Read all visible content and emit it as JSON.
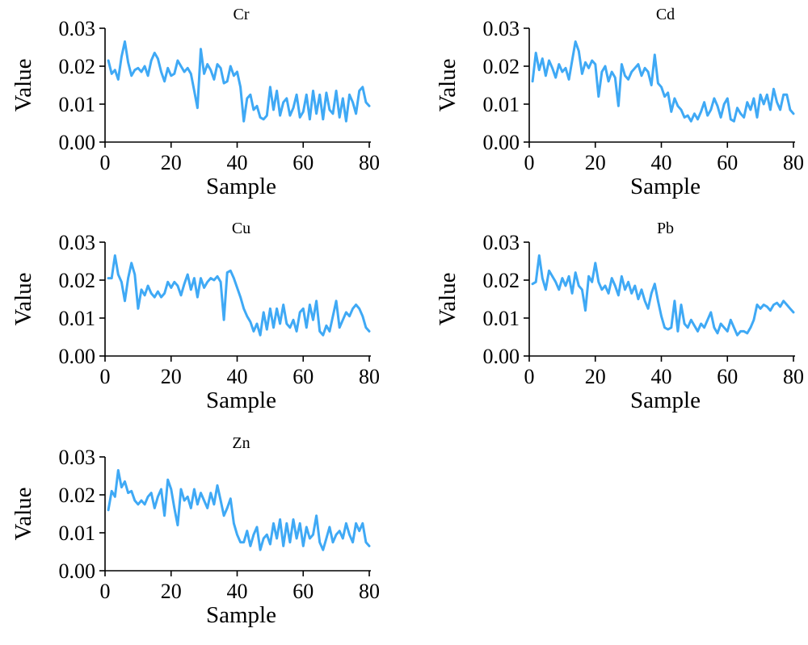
{
  "chart_data": [
    {
      "type": "line",
      "title": "Cr",
      "xlabel": "Sample",
      "ylabel": "Value",
      "xlim": [
        0,
        80
      ],
      "ylim": [
        0,
        0.03
      ],
      "xticks": [
        "0",
        "20",
        "40",
        "60",
        "80"
      ],
      "yticks": [
        "0.00",
        "0.01",
        "0.02",
        "0.03"
      ],
      "color": "#3fa9f5",
      "series": [
        {
          "x": [
            1,
            2,
            3,
            4,
            5,
            6,
            7,
            8,
            9,
            10,
            11,
            12,
            13,
            14,
            15,
            16,
            17,
            18,
            19,
            20,
            21,
            22,
            23,
            24,
            25,
            26,
            27,
            28,
            29,
            30,
            31,
            32,
            33,
            34,
            35,
            36,
            37,
            38,
            39,
            40,
            41,
            42,
            43,
            44,
            45,
            46,
            47,
            48,
            49,
            50,
            51,
            52,
            53,
            54,
            55,
            56,
            57,
            58,
            59,
            60,
            61,
            62,
            63,
            64,
            65,
            66,
            67,
            68,
            69,
            70,
            71,
            72,
            73,
            74,
            75,
            76,
            77,
            78,
            79,
            80
          ],
          "values": [
            0.0215,
            0.018,
            0.019,
            0.0165,
            0.0225,
            0.0265,
            0.021,
            0.0175,
            0.019,
            0.0195,
            0.0185,
            0.02,
            0.0175,
            0.0215,
            0.0235,
            0.022,
            0.0185,
            0.016,
            0.0195,
            0.0175,
            0.018,
            0.0215,
            0.02,
            0.0185,
            0.0195,
            0.018,
            0.0135,
            0.009,
            0.0245,
            0.018,
            0.0205,
            0.019,
            0.0165,
            0.0205,
            0.0195,
            0.0155,
            0.016,
            0.02,
            0.0175,
            0.0185,
            0.0145,
            0.0055,
            0.0115,
            0.0125,
            0.0085,
            0.0095,
            0.0065,
            0.006,
            0.007,
            0.0145,
            0.0085,
            0.0135,
            0.007,
            0.0105,
            0.0115,
            0.007,
            0.009,
            0.0125,
            0.0065,
            0.008,
            0.0125,
            0.006,
            0.0135,
            0.0075,
            0.0125,
            0.006,
            0.013,
            0.0085,
            0.0075,
            0.0135,
            0.0065,
            0.0115,
            0.0055,
            0.0125,
            0.0105,
            0.0075,
            0.0135,
            0.0145,
            0.0105,
            0.0095
          ]
        }
      ]
    },
    {
      "type": "line",
      "title": "Cd",
      "xlabel": "Sample",
      "ylabel": "Value",
      "xlim": [
        0,
        80
      ],
      "ylim": [
        0,
        0.03
      ],
      "xticks": [
        "0",
        "20",
        "40",
        "60",
        "80"
      ],
      "yticks": [
        "0.00",
        "0.01",
        "0.02",
        "0.03"
      ],
      "color": "#3fa9f5",
      "series": [
        {
          "x": [
            1,
            2,
            3,
            4,
            5,
            6,
            7,
            8,
            9,
            10,
            11,
            12,
            13,
            14,
            15,
            16,
            17,
            18,
            19,
            20,
            21,
            22,
            23,
            24,
            25,
            26,
            27,
            28,
            29,
            30,
            31,
            32,
            33,
            34,
            35,
            36,
            37,
            38,
            39,
            40,
            41,
            42,
            43,
            44,
            45,
            46,
            47,
            48,
            49,
            50,
            51,
            52,
            53,
            54,
            55,
            56,
            57,
            58,
            59,
            60,
            61,
            62,
            63,
            64,
            65,
            66,
            67,
            68,
            69,
            70,
            71,
            72,
            73,
            74,
            75,
            76,
            77,
            78,
            79,
            80
          ],
          "values": [
            0.016,
            0.0235,
            0.019,
            0.022,
            0.0175,
            0.0215,
            0.0195,
            0.017,
            0.0205,
            0.0185,
            0.0195,
            0.0165,
            0.0215,
            0.0265,
            0.024,
            0.018,
            0.021,
            0.0195,
            0.0215,
            0.0205,
            0.012,
            0.0185,
            0.02,
            0.016,
            0.0185,
            0.017,
            0.0095,
            0.0205,
            0.0175,
            0.0165,
            0.0185,
            0.0195,
            0.0205,
            0.0175,
            0.0195,
            0.0185,
            0.015,
            0.023,
            0.0155,
            0.0145,
            0.012,
            0.013,
            0.008,
            0.0115,
            0.0095,
            0.0085,
            0.0065,
            0.007,
            0.0055,
            0.0075,
            0.006,
            0.008,
            0.0105,
            0.007,
            0.0085,
            0.0115,
            0.0095,
            0.0065,
            0.01,
            0.0115,
            0.006,
            0.0055,
            0.009,
            0.0075,
            0.0065,
            0.0105,
            0.0085,
            0.0115,
            0.0065,
            0.0125,
            0.01,
            0.0125,
            0.0085,
            0.014,
            0.0105,
            0.0085,
            0.0125,
            0.0125,
            0.0085,
            0.0075
          ]
        }
      ]
    },
    {
      "type": "line",
      "title": "Cu",
      "xlabel": "Sample",
      "ylabel": "Value",
      "xlim": [
        0,
        80
      ],
      "ylim": [
        0,
        0.03
      ],
      "xticks": [
        "0",
        "20",
        "40",
        "60",
        "80"
      ],
      "yticks": [
        "0.00",
        "0.01",
        "0.02",
        "0.03"
      ],
      "color": "#3fa9f5",
      "series": [
        {
          "x": [
            1,
            2,
            3,
            4,
            5,
            6,
            7,
            8,
            9,
            10,
            11,
            12,
            13,
            14,
            15,
            16,
            17,
            18,
            19,
            20,
            21,
            22,
            23,
            24,
            25,
            26,
            27,
            28,
            29,
            30,
            31,
            32,
            33,
            34,
            35,
            36,
            37,
            38,
            39,
            40,
            41,
            42,
            43,
            44,
            45,
            46,
            47,
            48,
            49,
            50,
            51,
            52,
            53,
            54,
            55,
            56,
            57,
            58,
            59,
            60,
            61,
            62,
            63,
            64,
            65,
            66,
            67,
            68,
            69,
            70,
            71,
            72,
            73,
            74,
            75,
            76,
            77,
            78,
            79,
            80
          ],
          "values": [
            0.0205,
            0.0205,
            0.0265,
            0.0215,
            0.0195,
            0.0145,
            0.0205,
            0.0245,
            0.0215,
            0.0125,
            0.0175,
            0.016,
            0.0185,
            0.0165,
            0.0155,
            0.017,
            0.0155,
            0.0165,
            0.0195,
            0.018,
            0.0195,
            0.0185,
            0.016,
            0.019,
            0.0215,
            0.0175,
            0.0205,
            0.0155,
            0.0205,
            0.018,
            0.0195,
            0.0205,
            0.02,
            0.021,
            0.0195,
            0.0095,
            0.022,
            0.0225,
            0.0205,
            0.018,
            0.0155,
            0.0125,
            0.0105,
            0.009,
            0.0065,
            0.0085,
            0.0055,
            0.0115,
            0.007,
            0.0125,
            0.0075,
            0.0125,
            0.0085,
            0.0135,
            0.0085,
            0.0075,
            0.0095,
            0.0065,
            0.0115,
            0.0125,
            0.0075,
            0.0135,
            0.0095,
            0.0145,
            0.0065,
            0.0055,
            0.008,
            0.0065,
            0.0105,
            0.0145,
            0.0075,
            0.0095,
            0.0115,
            0.0105,
            0.0125,
            0.0135,
            0.0125,
            0.0105,
            0.0075,
            0.0065
          ]
        }
      ]
    },
    {
      "type": "line",
      "title": "Pb",
      "xlabel": "Sample",
      "ylabel": "Value",
      "xlim": [
        0,
        80
      ],
      "ylim": [
        0,
        0.03
      ],
      "xticks": [
        "0",
        "20",
        "40",
        "60",
        "80"
      ],
      "yticks": [
        "0.00",
        "0.01",
        "0.02",
        "0.03"
      ],
      "color": "#3fa9f5",
      "series": [
        {
          "x": [
            1,
            2,
            3,
            4,
            5,
            6,
            7,
            8,
            9,
            10,
            11,
            12,
            13,
            14,
            15,
            16,
            17,
            18,
            19,
            20,
            21,
            22,
            23,
            24,
            25,
            26,
            27,
            28,
            29,
            30,
            31,
            32,
            33,
            34,
            35,
            36,
            37,
            38,
            39,
            40,
            41,
            42,
            43,
            44,
            45,
            46,
            47,
            48,
            49,
            50,
            51,
            52,
            53,
            54,
            55,
            56,
            57,
            58,
            59,
            60,
            61,
            62,
            63,
            64,
            65,
            66,
            67,
            68,
            69,
            70,
            71,
            72,
            73,
            74,
            75,
            76,
            77,
            78,
            79,
            80
          ],
          "values": [
            0.019,
            0.0195,
            0.0265,
            0.0205,
            0.0175,
            0.0225,
            0.021,
            0.0195,
            0.0175,
            0.0205,
            0.0185,
            0.021,
            0.0165,
            0.022,
            0.0185,
            0.0175,
            0.012,
            0.021,
            0.0195,
            0.0245,
            0.0195,
            0.0175,
            0.0185,
            0.0165,
            0.0205,
            0.0185,
            0.016,
            0.021,
            0.0175,
            0.0195,
            0.0165,
            0.0185,
            0.015,
            0.0175,
            0.0145,
            0.0125,
            0.0165,
            0.019,
            0.0145,
            0.0105,
            0.0075,
            0.007,
            0.0075,
            0.0145,
            0.0065,
            0.0135,
            0.0085,
            0.0075,
            0.0095,
            0.008,
            0.0065,
            0.0085,
            0.0075,
            0.0095,
            0.0115,
            0.0075,
            0.006,
            0.0085,
            0.0075,
            0.0065,
            0.0095,
            0.0075,
            0.0055,
            0.0065,
            0.0065,
            0.006,
            0.0075,
            0.0095,
            0.0135,
            0.0125,
            0.0135,
            0.013,
            0.012,
            0.0135,
            0.014,
            0.013,
            0.0145,
            0.0135,
            0.0125,
            0.0115
          ]
        }
      ]
    },
    {
      "type": "line",
      "title": "Zn",
      "xlabel": "Sample",
      "ylabel": "Value",
      "xlim": [
        0,
        80
      ],
      "ylim": [
        0,
        0.03
      ],
      "xticks": [
        "0",
        "20",
        "40",
        "60",
        "80"
      ],
      "yticks": [
        "0.00",
        "0.01",
        "0.02",
        "0.03"
      ],
      "color": "#3fa9f5",
      "series": [
        {
          "x": [
            1,
            2,
            3,
            4,
            5,
            6,
            7,
            8,
            9,
            10,
            11,
            12,
            13,
            14,
            15,
            16,
            17,
            18,
            19,
            20,
            21,
            22,
            23,
            24,
            25,
            26,
            27,
            28,
            29,
            30,
            31,
            32,
            33,
            34,
            35,
            36,
            37,
            38,
            39,
            40,
            41,
            42,
            43,
            44,
            45,
            46,
            47,
            48,
            49,
            50,
            51,
            52,
            53,
            54,
            55,
            56,
            57,
            58,
            59,
            60,
            61,
            62,
            63,
            64,
            65,
            66,
            67,
            68,
            69,
            70,
            71,
            72,
            73,
            74,
            75,
            76,
            77,
            78,
            79,
            80
          ],
          "values": [
            0.016,
            0.021,
            0.0195,
            0.0265,
            0.022,
            0.0235,
            0.0205,
            0.021,
            0.0185,
            0.0175,
            0.0185,
            0.0175,
            0.0195,
            0.0205,
            0.0165,
            0.0195,
            0.0215,
            0.0145,
            0.024,
            0.0215,
            0.0165,
            0.012,
            0.0215,
            0.0185,
            0.0195,
            0.0165,
            0.0215,
            0.0175,
            0.0205,
            0.0185,
            0.0165,
            0.0205,
            0.0175,
            0.0225,
            0.0185,
            0.0145,
            0.0165,
            0.019,
            0.0125,
            0.0095,
            0.0075,
            0.0075,
            0.0105,
            0.0065,
            0.0095,
            0.0115,
            0.0055,
            0.0085,
            0.0095,
            0.007,
            0.0125,
            0.0085,
            0.0135,
            0.0065,
            0.0125,
            0.0075,
            0.0135,
            0.0085,
            0.0125,
            0.0065,
            0.0115,
            0.0085,
            0.0095,
            0.0145,
            0.0075,
            0.0055,
            0.0085,
            0.0115,
            0.0075,
            0.0095,
            0.0105,
            0.0085,
            0.0125,
            0.0095,
            0.0075,
            0.0125,
            0.0105,
            0.0125,
            0.0075,
            0.0065
          ]
        }
      ]
    }
  ]
}
